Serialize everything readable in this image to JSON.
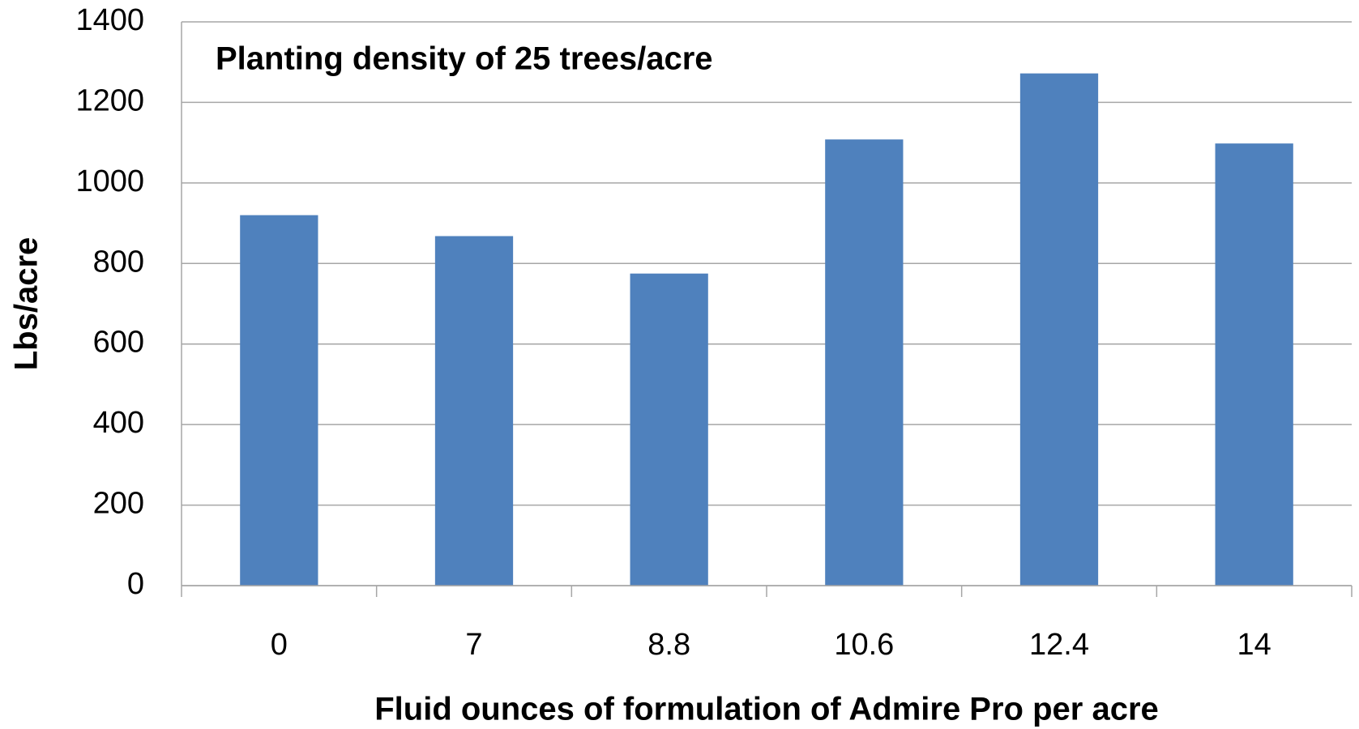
{
  "chart_data": {
    "type": "bar",
    "title": "Planting density of 25 trees/acre",
    "x_label": "Fluid ounces of formulation of Admire Pro per acre",
    "y_label": "Lbs/acre",
    "categories": [
      "0",
      "7",
      "8.8",
      "10.6",
      "12.4",
      "14"
    ],
    "values": [
      920,
      868,
      775,
      1108,
      1272,
      1098
    ],
    "color": "#4f81bd",
    "ylim": [
      0,
      1400
    ],
    "yticks": [
      0,
      200,
      400,
      600,
      800,
      1000,
      1200,
      1400
    ],
    "grid": true
  }
}
